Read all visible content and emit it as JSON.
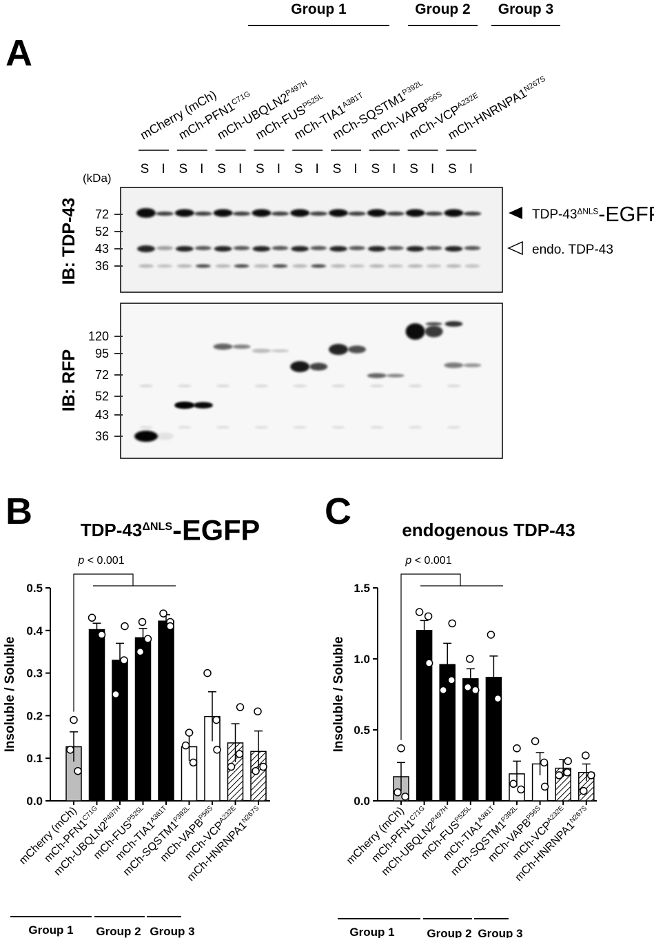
{
  "panel_a": {
    "label": "A",
    "groups": [
      "Group 1",
      "Group 2",
      "Group 3"
    ],
    "lanes": [
      "mCherry (mCh)",
      {
        "base": "mCh-PFN1",
        "sup": "C71G"
      },
      {
        "base": "mCh-UBQLN2",
        "sup": "P497H"
      },
      {
        "base": "mCh-FUS",
        "sup": "P525L"
      },
      {
        "base": "mCh-TIA1",
        "sup": "A381T"
      },
      {
        "base": "mCh-SQSTM1",
        "sup": "P392L"
      },
      {
        "base": "mCh-VAPB",
        "sup": "P56S"
      },
      {
        "base": "mCh-VCP",
        "sup": "A232E"
      },
      {
        "base": "mCh-HNRNPA1",
        "sup": "N267S"
      }
    ],
    "fractions": [
      "S",
      "I"
    ],
    "kda_label": "(kDa)",
    "blots": [
      {
        "ib": "IB: TDP-43",
        "markers": [
          72,
          52,
          43,
          36
        ]
      },
      {
        "ib": "IB: RFP",
        "markers": [
          120,
          95,
          72,
          52,
          43,
          36
        ]
      }
    ],
    "arrows": [
      {
        "base": "TDP-43",
        "sup": "ΔNLS",
        "suffix": "-EGFP"
      },
      "endo. TDP-43"
    ]
  },
  "chart_data": [
    {
      "type": "bar",
      "panel": "B",
      "title": {
        "base": "TDP-43",
        "sup": "ΔNLS",
        "suffix": "-EGFP"
      },
      "ylabel": "Insoluble / Soluble",
      "annotation": {
        "italic": "p",
        "text": " < 0.001"
      },
      "categories": [
        "mCherry (mCh)",
        {
          "base": "mCh-PFN1",
          "sup": "C71G"
        },
        {
          "base": "mCh-UBQLN2",
          "sup": "P497H"
        },
        {
          "base": "mCh-FUS",
          "sup": "P525L"
        },
        {
          "base": "mCh-TIA1",
          "sup": "A381T"
        },
        {
          "base": "mCh-SQSTM1",
          "sup": "P392L"
        },
        {
          "base": "mCh-VAPB",
          "sup": "P56S"
        },
        {
          "base": "mCh-VCP",
          "sup": "A232E"
        },
        {
          "base": "mCh-HNRNPA1",
          "sup": "N267S"
        }
      ],
      "values": [
        0.127,
        0.402,
        0.33,
        0.383,
        0.422,
        0.127,
        0.198,
        0.136,
        0.116
      ],
      "errors": [
        0.035,
        0.015,
        0.04,
        0.022,
        0.015,
        0.033,
        0.058,
        0.045,
        0.048
      ],
      "points": [
        [
          0.19,
          0.12,
          0.07
        ],
        [
          0.43,
          0.39,
          0.39
        ],
        [
          0.41,
          0.33,
          0.25
        ],
        [
          0.42,
          0.38,
          0.35
        ],
        [
          0.44,
          0.42,
          0.41
        ],
        [
          0.16,
          0.13,
          0.09
        ],
        [
          0.3,
          0.19,
          0.12
        ],
        [
          0.22,
          0.11,
          0.08
        ],
        [
          0.21,
          0.08,
          0.07
        ]
      ],
      "fills": [
        "gray",
        "black",
        "black",
        "black",
        "black",
        "white",
        "white",
        "hatched",
        "hatched"
      ],
      "ylim": [
        0,
        0.5
      ],
      "yticks": [
        {
          "value": 0,
          "label": "0.0"
        },
        0.1,
        0.2,
        0.3,
        0.4,
        0.5
      ],
      "groups": [
        "Group 1",
        "Group 2",
        "Group 3"
      ]
    },
    {
      "type": "bar",
      "panel": "C",
      "title": "endogenous TDP-43",
      "ylabel": "Insoluble / Soluble",
      "annotation": {
        "italic": "p",
        "text": " < 0.001"
      },
      "categories": [
        "mCherry (mCh)",
        {
          "base": "mCh-PFN1",
          "sup": "C71G"
        },
        {
          "base": "mCh-UBQLN2",
          "sup": "P497H"
        },
        {
          "base": "mCh-FUS",
          "sup": "P525L"
        },
        {
          "base": "mCh-TIA1",
          "sup": "A381T"
        },
        {
          "base": "mCh-SQSTM1",
          "sup": "P392L"
        },
        {
          "base": "mCh-VAPB",
          "sup": "P56S"
        },
        {
          "base": "mCh-VCP",
          "sup": "A232E"
        },
        {
          "base": "mCh-HNRNPA1",
          "sup": "N267S"
        }
      ],
      "values": [
        0.17,
        1.2,
        0.96,
        0.86,
        0.87,
        0.19,
        0.26,
        0.23,
        0.2
      ],
      "errors": [
        0.1,
        0.07,
        0.15,
        0.07,
        0.15,
        0.09,
        0.08,
        0.06,
        0.06
      ],
      "points": [
        [
          0.37,
          0.06,
          0.03
        ],
        [
          1.33,
          1.3,
          0.97
        ],
        [
          1.25,
          0.85,
          0.78
        ],
        [
          1.0,
          0.78,
          0.8
        ],
        [
          1.17,
          0.72,
          0.72
        ],
        [
          0.37,
          0.12,
          0.08
        ],
        [
          0.42,
          0.27,
          0.1
        ],
        [
          0.28,
          0.2,
          0.18
        ],
        [
          0.32,
          0.18,
          0.07
        ]
      ],
      "fills": [
        "gray",
        "black",
        "black",
        "black",
        "black",
        "white",
        "white",
        "hatched",
        "hatched"
      ],
      "ylim": [
        0,
        1.5
      ],
      "yticks": [
        {
          "value": 0,
          "label": "0.0"
        },
        0.5,
        {
          "value": 1,
          "label": "1.0"
        },
        1.5
      ],
      "groups": [
        "Group 1",
        "Group 2",
        "Group 3"
      ]
    }
  ]
}
